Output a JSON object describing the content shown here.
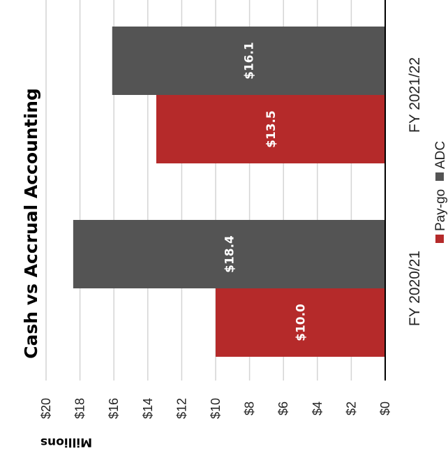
{
  "chart_data": {
    "type": "bar",
    "title": "Cash vs Accrual Accounting",
    "ylabel": "Millions",
    "xlabel": "",
    "categories": [
      "FY 2020/21",
      "FY 2021/22"
    ],
    "series": [
      {
        "name": "Pay-go",
        "values": [
          10.0,
          13.5
        ],
        "labels": [
          "$10.0",
          "$13.5"
        ]
      },
      {
        "name": "ADC",
        "values": [
          18.4,
          16.1
        ],
        "labels": [
          "$18.4",
          "$16.1"
        ]
      }
    ],
    "ylim": [
      0,
      20
    ],
    "yticks": [
      0,
      2,
      4,
      6,
      8,
      10,
      12,
      14,
      16,
      18,
      20
    ],
    "ytick_labels": [
      "$0",
      "$2",
      "$4",
      "$6",
      "$8",
      "$10",
      "$12",
      "$14",
      "$16",
      "$18",
      "$20"
    ],
    "grid": true,
    "legend_position": "bottom",
    "colors": {
      "Pay-go": "#b52a2a",
      "ADC": "#545454"
    }
  }
}
